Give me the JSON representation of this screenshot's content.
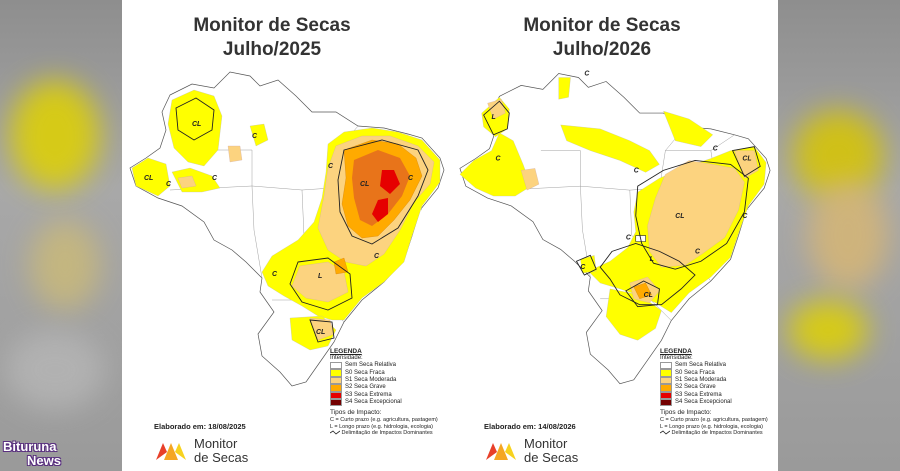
{
  "maps": [
    {
      "title_line1": "Monitor de Secas",
      "title_line2": "Julho/2025",
      "elaborado": "Elaborado em: 18/08/2025"
    },
    {
      "title_line1": "Monitor de Secas",
      "title_line2": "Julho/2026",
      "elaborado": "Elaborado em: 14/08/2026"
    }
  ],
  "legend": {
    "title": "LEGENDA",
    "subtitle": "Intensidade:",
    "items": [
      {
        "label": "Sem Seca Relativa",
        "color": "#ffffff"
      },
      {
        "label": "S0 Seca Fraca",
        "color": "#ffff00"
      },
      {
        "label": "S1 Seca Moderada",
        "color": "#fcd37f"
      },
      {
        "label": "S2 Seca Grave",
        "color": "#ffaa00"
      },
      {
        "label": "S3 Seca Extrema",
        "color": "#e60000"
      },
      {
        "label": "S4 Seca Excepcional",
        "color": "#730000"
      }
    ],
    "impact_title": "Tipos de Impacto:",
    "impact_c": "C = Curto prazo (e.g. agricultura, pastagem)",
    "impact_l": "L = Longo prazo (e.g. hidrologia, ecologia)",
    "impact_line": "Delimitação de Impactos Dominantes"
  },
  "map_labels": {
    "cl": "CL",
    "c": "C",
    "l": "L"
  },
  "logo": {
    "line1": "Monitor",
    "line2": "de Secas",
    "colors": [
      "#e8402a",
      "#f5a623",
      "#f7d21e"
    ]
  },
  "watermark": {
    "line1": "Bituruna",
    "line2": "News"
  }
}
